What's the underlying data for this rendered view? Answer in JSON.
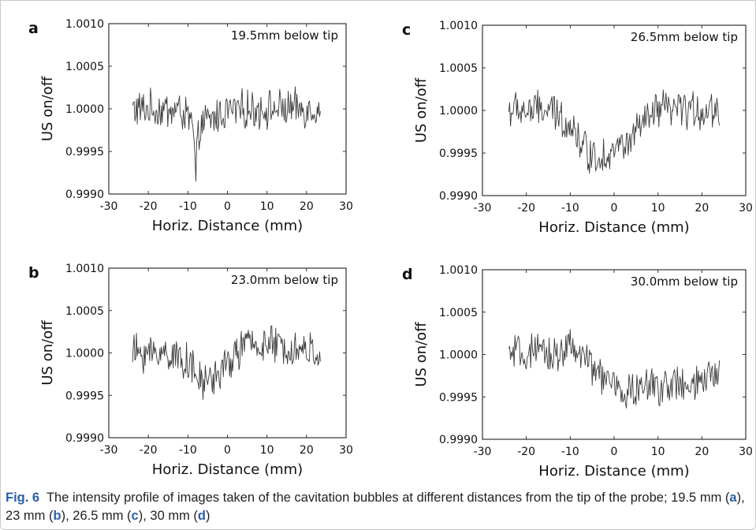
{
  "chart_data": [
    {
      "type": "line",
      "panel_label": "a",
      "annotation": "19.5mm below tip",
      "xlabel": "Horiz. Distance (mm)",
      "ylabel": "US on/off",
      "xlim": [
        -30,
        30
      ],
      "ylim": [
        0.999,
        1.001
      ],
      "x_ticks": [
        "-30",
        "-20",
        "-10",
        "0",
        "10",
        "20",
        "30"
      ],
      "y_ticks": [
        "0.9990",
        "0.9995",
        "1.0000",
        "1.0005",
        "1.0010"
      ],
      "x_range": [
        -24,
        23.5
      ],
      "dip_center": -8,
      "profile": [
        [
          -24,
          1.0
        ],
        [
          -12,
          0.99998
        ],
        [
          -9,
          0.99985
        ],
        [
          -8,
          0.9993
        ],
        [
          -7,
          0.9998
        ],
        [
          -5,
          0.99985
        ],
        [
          0,
          0.99998
        ],
        [
          10,
          1.0
        ],
        [
          23.5,
          1.0
        ]
      ]
    },
    {
      "type": "line",
      "panel_label": "b",
      "annotation": "23.0mm below tip",
      "xlabel": "Horiz. Distance (mm)",
      "ylabel": "US on/off",
      "xlim": [
        -30,
        30
      ],
      "ylim": [
        0.999,
        1.001
      ],
      "x_ticks": [
        "-30",
        "-20",
        "-10",
        "0",
        "10",
        "20",
        "30"
      ],
      "y_ticks": [
        "0.9990",
        "0.9995",
        "1.0000",
        "1.0005",
        "1.0010"
      ],
      "x_range": [
        -24,
        23.5
      ],
      "dip_center": -6,
      "profile": [
        [
          -24,
          1.0
        ],
        [
          -15,
          1.0
        ],
        [
          -10,
          0.9999
        ],
        [
          -7,
          0.99965
        ],
        [
          -4,
          0.9997
        ],
        [
          0,
          0.99985
        ],
        [
          4,
          1.0001
        ],
        [
          10,
          1.0001
        ],
        [
          23.5,
          1.0
        ]
      ]
    },
    {
      "type": "line",
      "panel_label": "c",
      "annotation": "26.5mm below tip",
      "xlabel": "Horiz. Distance (mm)",
      "ylabel": "US on/off",
      "xlim": [
        -30,
        30
      ],
      "ylim": [
        0.999,
        1.001
      ],
      "x_ticks": [
        "-30",
        "-20",
        "-10",
        "0",
        "10",
        "20",
        "30"
      ],
      "y_ticks": [
        "0.9990",
        "0.9995",
        "1.0000",
        "1.0005",
        "1.0010"
      ],
      "x_range": [
        -24,
        24
      ],
      "dip_center": -2,
      "profile": [
        [
          -24,
          1.0
        ],
        [
          -15,
          1.0
        ],
        [
          -10,
          0.99985
        ],
        [
          -6,
          0.9995
        ],
        [
          -3,
          0.99945
        ],
        [
          0,
          0.99955
        ],
        [
          3,
          0.9996
        ],
        [
          6,
          0.9998
        ],
        [
          10,
          1.0
        ],
        [
          24,
          1.0
        ]
      ]
    },
    {
      "type": "line",
      "panel_label": "d",
      "annotation": "30.0mm below tip",
      "xlabel": "Horiz. Distance (mm)",
      "ylabel": "US on/off",
      "xlim": [
        -30,
        30
      ],
      "ylim": [
        0.999,
        1.001
      ],
      "x_ticks": [
        "-30",
        "-20",
        "-10",
        "0",
        "10",
        "20",
        "30"
      ],
      "y_ticks": [
        "0.9990",
        "0.9995",
        "1.0000",
        "1.0005",
        "1.0010"
      ],
      "x_range": [
        -24,
        24
      ],
      "dip_center": 3,
      "profile": [
        [
          -24,
          1.0
        ],
        [
          -14,
          1.0
        ],
        [
          -10,
          1.0001
        ],
        [
          -5,
          0.99985
        ],
        [
          -2,
          0.9997
        ],
        [
          2,
          0.99955
        ],
        [
          6,
          0.9996
        ],
        [
          12,
          0.99965
        ],
        [
          18,
          0.9996
        ],
        [
          24,
          0.9998
        ]
      ]
    }
  ],
  "caption": {
    "label": "Fig. 6",
    "text_1": "The intensity profile of images taken of the cavitation bubbles at different distances from the tip of the probe; 19.5 mm (",
    "a": "a",
    "text_2": "), 23 mm (",
    "b": "b",
    "text_3": "), 26.5 mm (",
    "c": "c",
    "text_4": "), 30 mm (",
    "d": "d",
    "text_5": ")"
  },
  "colors": {
    "trace": "#3a3a3a",
    "frame": "#333333",
    "caption_accent": "#2a5fa8"
  }
}
